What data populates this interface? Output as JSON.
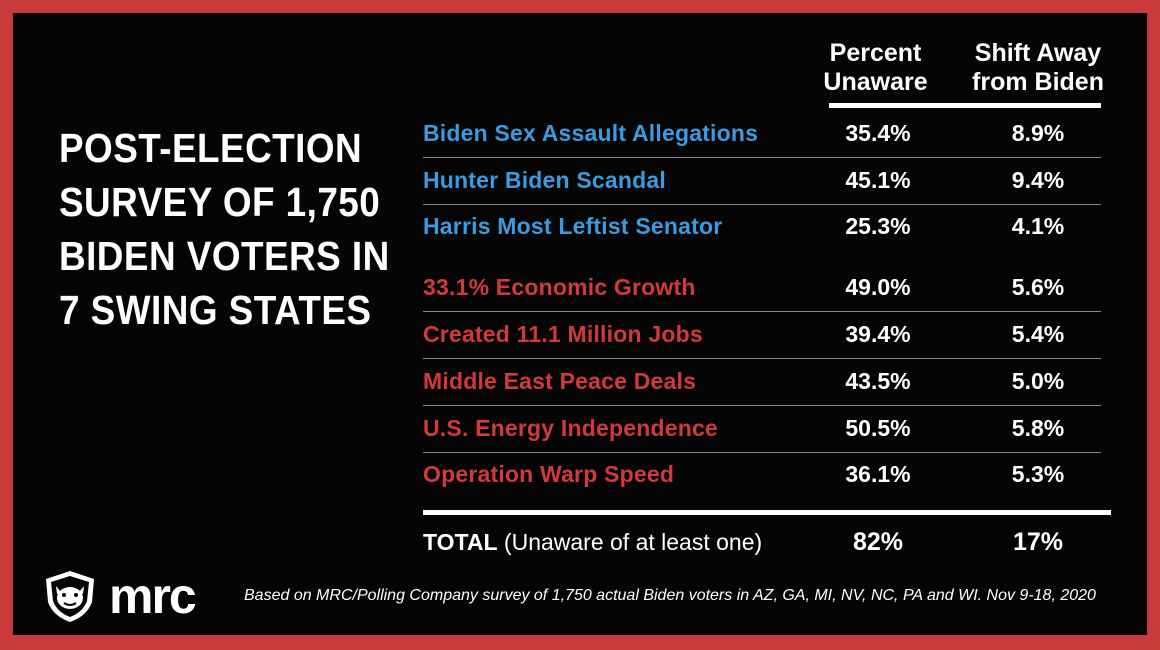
{
  "title_lines": [
    "POST-ELECTION",
    "SURVEY OF 1,750",
    "BIDEN VOTERS IN",
    "7 SWING STATES"
  ],
  "columns": {
    "col1": [
      "Percent",
      "Unaware"
    ],
    "col2": [
      "Shift Away",
      "from Biden"
    ]
  },
  "rows": [
    {
      "label": "Biden Sex Assault Allegations",
      "percent_unaware": "35.4%",
      "shift": "8.9%",
      "color": "#3b9be0"
    },
    {
      "label": "Hunter Biden Scandal",
      "percent_unaware": "45.1%",
      "shift": "9.4%",
      "color": "#3b9be0"
    },
    {
      "label": "Harris Most Leftist Senator",
      "percent_unaware": "25.3%",
      "shift": "4.1%",
      "color": "#3b9be0"
    },
    {
      "label": "33.1% Economic Growth",
      "percent_unaware": "49.0%",
      "shift": "5.6%",
      "color": "#d23a3a"
    },
    {
      "label": "Created 11.1 Million Jobs",
      "percent_unaware": "39.4%",
      "shift": "5.4%",
      "color": "#d23a3a"
    },
    {
      "label": "Middle East Peace Deals",
      "percent_unaware": "43.5%",
      "shift": "5.0%",
      "color": "#d23a3a"
    },
    {
      "label": "U.S. Energy Independence",
      "percent_unaware": "50.5%",
      "shift": "5.8%",
      "color": "#d23a3a"
    },
    {
      "label": "Operation Warp Speed",
      "percent_unaware": "36.1%",
      "shift": "5.3%",
      "color": "#d23a3a"
    }
  ],
  "total": {
    "label_bold": "TOTAL",
    "label_rest": " (Unaware of at least one)",
    "percent_unaware": "82%",
    "shift": "17%"
  },
  "footer": {
    "logo_text": "mrc",
    "logo_icon": "bulldog-shield-icon",
    "note": "Based on MRC/Polling Company survey of 1,750 actual Biden voters in AZ, GA, MI, NV, NC, PA and WI. Nov 9-18, 2020"
  },
  "chart_data": {
    "type": "table",
    "columns": [
      "Percent Unaware",
      "Shift Away from Biden"
    ],
    "categories": [
      "Biden Sex Assault Allegations",
      "Hunter Biden Scandal",
      "Harris Most Leftist Senator",
      "33.1% Economic Growth",
      "Created 11.1 Million Jobs",
      "Middle East Peace Deals",
      "U.S. Energy Independence",
      "Operation Warp Speed",
      "TOTAL (Unaware of at least one)"
    ],
    "series": [
      {
        "name": "Percent Unaware",
        "values": [
          35.4,
          45.1,
          25.3,
          49.0,
          39.4,
          43.5,
          50.5,
          36.1,
          82
        ]
      },
      {
        "name": "Shift Away from Biden",
        "values": [
          8.9,
          9.4,
          4.1,
          5.6,
          5.4,
          5.0,
          5.8,
          5.3,
          17
        ]
      }
    ],
    "colors": {
      "background": "#050505",
      "border": "#c93a3a",
      "blue": "#3b9be0",
      "red": "#d23a3a"
    }
  }
}
